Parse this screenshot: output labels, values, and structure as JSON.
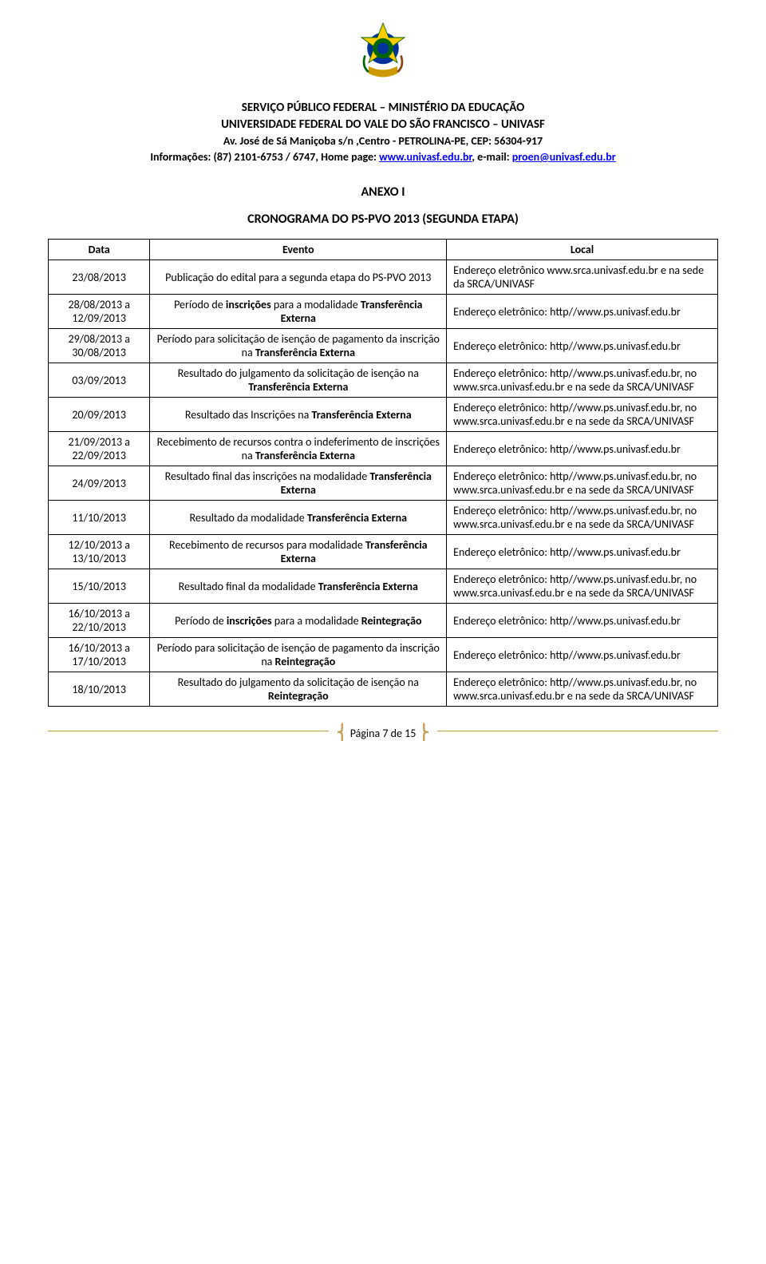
{
  "header": {
    "line1": "SERVIÇO PÚBLICO FEDERAL – MINISTÉRIO DA EDUCAÇÃO",
    "line2": "UNIVERSIDADE FEDERAL DO VALE DO SÃO FRANCISCO – UNIVASF",
    "line3": "Av. José de Sá Maniçoba s/n ,Centro - PETROLINA-PE, CEP: 56304-917",
    "line4_prefix": "Informações: (87) 2101-6753 / 6747, Home page: ",
    "line4_link1": "www.univasf.edu.br",
    "line4_mid": ", e-mail: ",
    "line4_link2": "proen@univasf.edu.br"
  },
  "anexo_title": "ANEXO I",
  "cronograma_title": "CRONOGRAMA DO PS-PVO 2013 (SEGUNDA ETAPA)",
  "table": {
    "headers": {
      "data": "Data",
      "evento": "Evento",
      "local": "Local"
    },
    "rows": [
      {
        "date": "23/08/2013",
        "event_pre": "Publicação do edital para a segunda etapa do PS-PVO 2013",
        "local_pre": "Endereço eletrônico ",
        "local_link": "www.srca.univasf.edu.br",
        "local_post": " e na sede da SRCA/UNIVASF"
      },
      {
        "date": "28/08/2013 a 12/09/2013",
        "event_pre": "Período de ",
        "event_bold1": "inscrições",
        "event_mid": " para a modalidade ",
        "event_bold2": "Transferência Externa",
        "local_pre": "Endereço eletrônico: http//www.ps.univasf.edu.br"
      },
      {
        "date": "29/08/2013 a 30/08/2013",
        "event_pre": "Período para solicitação de isenção de pagamento da inscrição na ",
        "event_bold1": "Transferência Externa",
        "local_pre": "Endereço eletrônico: http//www.ps.univasf.edu.br"
      },
      {
        "date": "03/09/2013",
        "event_pre": "Resultado do julgamento da solicitação de isenção na ",
        "event_bold1": "Transferência Externa",
        "local_pre": "Endereço eletrônico: http//www.ps.univasf.edu.br, no ",
        "local_link": "www.srca.univasf.edu.br",
        "local_post": " e na sede da SRCA/UNIVASF"
      },
      {
        "date": "20/09/2013",
        "event_pre": "Resultado das Inscrições na ",
        "event_bold1": "Transferência Externa",
        "local_pre": "Endereço eletrônico: http//www.ps.univasf.edu.br, no ",
        "local_link": "www.srca.univasf.edu.br",
        "local_post": " e na sede da SRCA/UNIVASF"
      },
      {
        "date": "21/09/2013 a 22/09/2013",
        "event_pre": "Recebimento de recursos contra o indeferimento de inscrições na ",
        "event_bold1": "Transferência Externa",
        "local_pre": "Endereço eletrônico: http//www.ps.univasf.edu.br"
      },
      {
        "date": "24/09/2013",
        "event_pre": "Resultado final das inscrições na modalidade ",
        "event_bold1": "Transferência Externa",
        "local_pre": "Endereço eletrônico: http//www.ps.univasf.edu.br, no ",
        "local_link": "www.srca.univasf.edu.br",
        "local_post": " e na sede da SRCA/UNIVASF"
      },
      {
        "date": "11/10/2013",
        "event_pre": "Resultado da modalidade ",
        "event_bold1": "Transferência Externa",
        "local_pre": "Endereço eletrônico: http//www.ps.univasf.edu.br, no ",
        "local_link": "www.srca.univasf.edu.br",
        "local_post": " e na sede da SRCA/UNIVASF"
      },
      {
        "date": "12/10/2013 a 13/10/2013",
        "event_pre": "Recebimento de recursos para modalidade ",
        "event_bold1": "Transferência Externa",
        "local_pre": "Endereço eletrônico: http//www.ps.univasf.edu.br"
      },
      {
        "date": "15/10/2013",
        "event_pre": "Resultado final da modalidade ",
        "event_bold1": "Transferência Externa",
        "local_pre": "Endereço eletrônico: http//www.ps.univasf.edu.br, no ",
        "local_link": "www.srca.univasf.edu.br",
        "local_post": " e na sede da SRCA/UNIVASF"
      },
      {
        "date": "16/10/2013 a 22/10/2013",
        "event_pre": "Período de ",
        "event_bold1": "inscrições",
        "event_mid": " para a modalidade ",
        "event_bold2": "Reintegração",
        "local_pre": "Endereço eletrônico: http//www.ps.univasf.edu.br"
      },
      {
        "date": "16/10/2013 a 17/10/2013",
        "event_pre": "Período para solicitação de isenção de pagamento da inscrição na ",
        "event_bold1": "Reintegração",
        "local_pre": "Endereço eletrônico: http//www.ps.univasf.edu.br"
      },
      {
        "date": "18/10/2013",
        "event_pre": "Resultado do julgamento da solicitação de isenção na ",
        "event_bold1": "Reintegração",
        "local_pre": "Endereço eletrônico: http//www.ps.univasf.edu.br, no ",
        "local_link": "www.srca.univasf.edu.br",
        "local_post": " e na sede da SRCA/UNIVASF"
      }
    ]
  },
  "footer": {
    "text": "Página 7 de 15"
  }
}
